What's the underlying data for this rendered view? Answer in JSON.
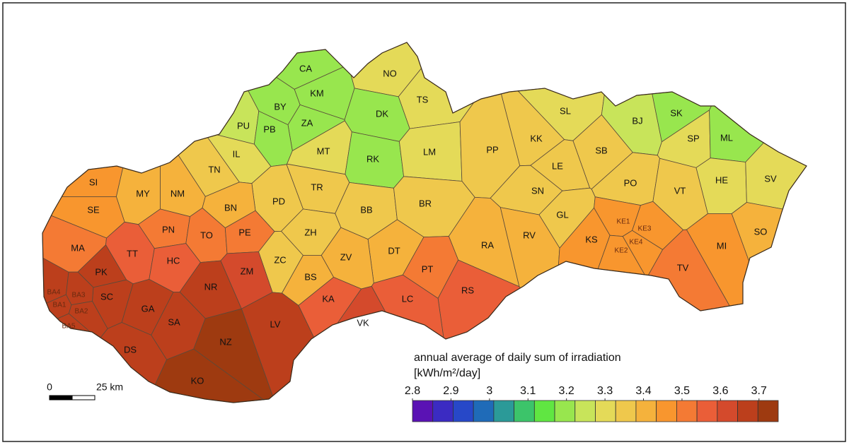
{
  "legend": {
    "title": "annual average of daily sum of irradiation",
    "unit": "[kWh/m²/day]",
    "ticks": [
      2.8,
      2.9,
      3.0,
      3.1,
      3.2,
      3.3,
      3.4,
      3.5,
      3.6,
      3.7
    ],
    "range": [
      2.8,
      3.75
    ],
    "colors": [
      "#5a12b4",
      "#3b2bc2",
      "#2748c8",
      "#1f6bb8",
      "#2b9a98",
      "#3cc46a",
      "#60e642",
      "#98e64e",
      "#c8e45a",
      "#e4da58",
      "#efc84c",
      "#f5b23c",
      "#f8962e",
      "#f47a34",
      "#ea5e38",
      "#d44a2c",
      "#bc3f1c",
      "#9e3a10"
    ]
  },
  "scale_bar": {
    "labels": [
      "0",
      "25 km"
    ]
  },
  "districts": [
    {
      "code": "CA",
      "value": 3.18
    },
    {
      "code": "NO",
      "value": 3.28
    },
    {
      "code": "KM",
      "value": 3.18
    },
    {
      "code": "TS",
      "value": 3.28
    },
    {
      "code": "BY",
      "value": 3.18
    },
    {
      "code": "DK",
      "value": 3.18
    },
    {
      "code": "ZA",
      "value": 3.18
    },
    {
      "code": "PU",
      "value": 3.23
    },
    {
      "code": "PB",
      "value": 3.18
    },
    {
      "code": "SL",
      "value": 3.28
    },
    {
      "code": "BJ",
      "value": 3.23
    },
    {
      "code": "SK",
      "value": 3.18
    },
    {
      "code": "MT",
      "value": 3.28
    },
    {
      "code": "KK",
      "value": 3.33
    },
    {
      "code": "RK",
      "value": 3.18
    },
    {
      "code": "LM",
      "value": 3.28
    },
    {
      "code": "PP",
      "value": 3.38
    },
    {
      "code": "SB",
      "value": 3.33
    },
    {
      "code": "SP",
      "value": 3.28
    },
    {
      "code": "ML",
      "value": 3.18
    },
    {
      "code": "IL",
      "value": 3.28
    },
    {
      "code": "TN",
      "value": 3.38
    },
    {
      "code": "LE",
      "value": 3.33
    },
    {
      "code": "HE",
      "value": 3.28
    },
    {
      "code": "SV",
      "value": 3.28
    },
    {
      "code": "PO",
      "value": 3.33
    },
    {
      "code": "SI",
      "value": 3.48
    },
    {
      "code": "MY",
      "value": 3.43
    },
    {
      "code": "NM",
      "value": 3.43
    },
    {
      "code": "TR",
      "value": 3.38
    },
    {
      "code": "SN",
      "value": 3.33
    },
    {
      "code": "VT",
      "value": 3.38
    },
    {
      "code": "PD",
      "value": 3.38
    },
    {
      "code": "BB",
      "value": 3.38
    },
    {
      "code": "BR",
      "value": 3.38
    },
    {
      "code": "BN",
      "value": 3.43
    },
    {
      "code": "SE",
      "value": 3.48
    },
    {
      "code": "GL",
      "value": 3.33
    },
    {
      "code": "PN",
      "value": 3.53
    },
    {
      "code": "ZH",
      "value": 3.38
    },
    {
      "code": "TO",
      "value": 3.53
    },
    {
      "code": "PE",
      "value": 3.53
    },
    {
      "code": "RA",
      "value": 3.43
    },
    {
      "code": "RV",
      "value": 3.43
    },
    {
      "code": "KS",
      "value": 3.48
    },
    {
      "code": "MI",
      "value": 3.48
    },
    {
      "code": "SO",
      "value": 3.43
    },
    {
      "code": "MA",
      "value": 3.53
    },
    {
      "code": "TT",
      "value": 3.58
    },
    {
      "code": "DT",
      "value": 3.43
    },
    {
      "code": "HC",
      "value": 3.58
    },
    {
      "code": "ZC",
      "value": 3.38
    },
    {
      "code": "ZV",
      "value": 3.43
    },
    {
      "code": "ZM",
      "value": 3.63
    },
    {
      "code": "PT",
      "value": 3.53
    },
    {
      "code": "TV",
      "value": 3.53
    },
    {
      "code": "PK",
      "value": 3.68
    },
    {
      "code": "NR",
      "value": 3.68
    },
    {
      "code": "BS",
      "value": 3.43
    },
    {
      "code": "RS",
      "value": 3.58
    },
    {
      "code": "SC",
      "value": 3.68
    },
    {
      "code": "KA",
      "value": 3.58
    },
    {
      "code": "LC",
      "value": 3.58
    },
    {
      "code": "GA",
      "value": 3.68
    },
    {
      "code": "VK",
      "value": 3.63
    },
    {
      "code": "LV",
      "value": 3.68
    },
    {
      "code": "SA",
      "value": 3.68
    },
    {
      "code": "NZ",
      "value": 3.73
    },
    {
      "code": "DS",
      "value": 3.68
    },
    {
      "code": "KO",
      "value": 3.73
    },
    {
      "code": "KE1",
      "value": 3.48
    },
    {
      "code": "KE3",
      "value": 3.48
    },
    {
      "code": "KE2",
      "value": 3.48
    },
    {
      "code": "KE4",
      "value": 3.48
    },
    {
      "code": "BA4",
      "value": 3.68
    },
    {
      "code": "BA3",
      "value": 3.68
    },
    {
      "code": "BA1",
      "value": 3.68
    },
    {
      "code": "BA2",
      "value": 3.68
    },
    {
      "code": "BA5",
      "value": 3.68
    }
  ]
}
